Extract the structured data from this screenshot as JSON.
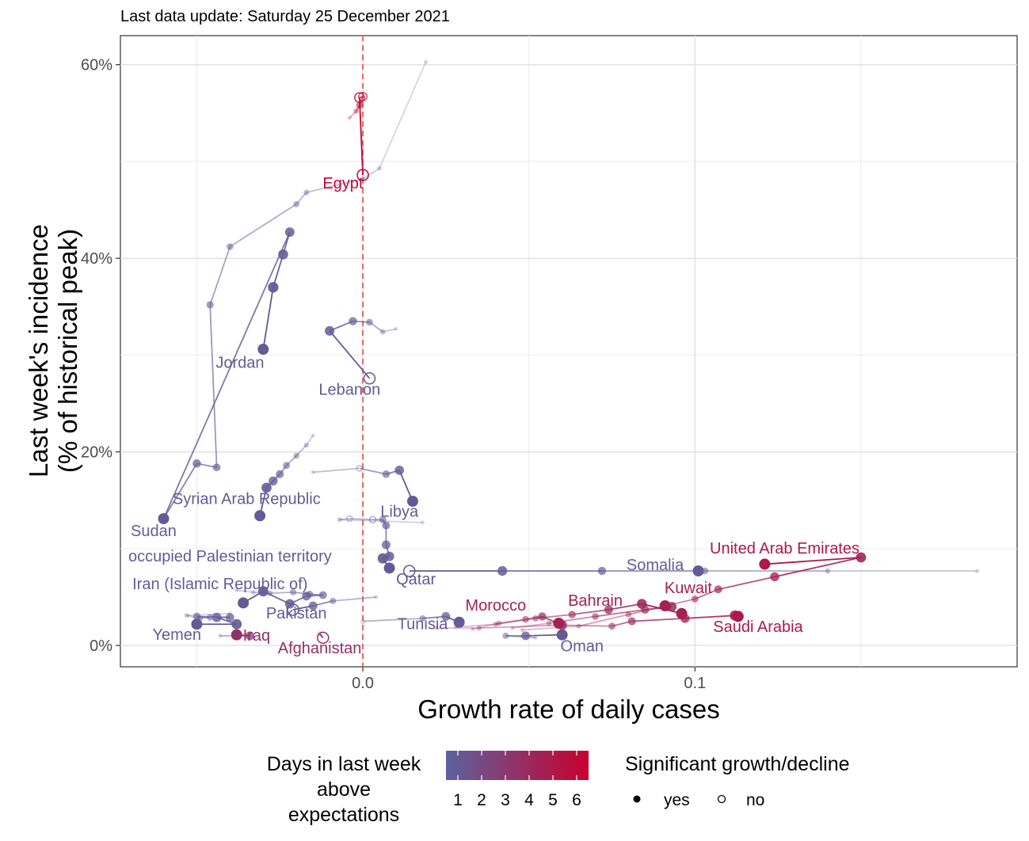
{
  "update_text": "Last data update: Saturday 25 December 2021",
  "chart_data": {
    "type": "scatter",
    "xlabel": "Growth rate of daily cases",
    "ylabel_lines": [
      "Last week's incidence",
      "(% of historical peak)"
    ],
    "xlim": [
      -0.073,
      0.197
    ],
    "ylim": [
      -0.022,
      0.63
    ],
    "x_ticks": [
      {
        "value": 0.0,
        "label": "0.0"
      },
      {
        "value": 0.1,
        "label": "0.1"
      }
    ],
    "y_ticks": [
      {
        "value": 0.0,
        "label": "0%"
      },
      {
        "value": 0.2,
        "label": "20%"
      },
      {
        "value": 0.4,
        "label": "40%"
      },
      {
        "value": 0.6,
        "label": "60%"
      }
    ],
    "x_minor": [
      -0.05,
      0.05,
      0.15
    ],
    "y_minor": [
      0.1,
      0.3,
      0.5
    ],
    "reference_line_x": 0.0,
    "grid": true,
    "colors": {
      "low": "#5b62a0",
      "high": "#c8002d",
      "line": "#e8685f"
    },
    "countries": [
      {
        "name": "Egypt",
        "label_at": [
          -0.006,
          0.472
        ],
        "points": [
          [
            -0.004,
            0.545,
            5.5,
            1
          ],
          [
            -0.002,
            0.552,
            5.5,
            1
          ],
          [
            -0.001,
            0.558,
            6,
            1
          ],
          [
            0.0,
            0.567,
            6,
            0
          ],
          [
            -0.001,
            0.566,
            6,
            0
          ],
          [
            0.0,
            0.486,
            6,
            0
          ]
        ]
      },
      {
        "name": "Jordan",
        "label_at": [
          -0.037,
          0.287
        ],
        "points": [
          [
            0.019,
            0.603,
            1,
            1
          ],
          [
            0.005,
            0.493,
            1,
            1
          ],
          [
            0.0,
            0.482,
            1,
            1
          ],
          [
            -0.017,
            0.468,
            1,
            1
          ],
          [
            -0.02,
            0.456,
            1,
            1
          ],
          [
            -0.04,
            0.412,
            1,
            1
          ],
          [
            -0.046,
            0.352,
            1,
            1
          ],
          [
            -0.044,
            0.184,
            1,
            1
          ],
          [
            -0.05,
            0.188,
            1,
            1
          ],
          [
            -0.06,
            0.131,
            1,
            1
          ],
          [
            -0.022,
            0.427,
            1,
            1
          ],
          [
            -0.024,
            0.404,
            1,
            1
          ],
          [
            -0.027,
            0.37,
            1,
            1
          ],
          [
            -0.03,
            0.306,
            1,
            1
          ]
        ]
      },
      {
        "name": "Lebanon",
        "label_at": [
          -0.004,
          0.259
        ],
        "points": [
          [
            0.01,
            0.327,
            1,
            1
          ],
          [
            0.006,
            0.324,
            1,
            1
          ],
          [
            0.002,
            0.334,
            1,
            1
          ],
          [
            -0.003,
            0.335,
            1,
            1
          ],
          [
            -0.01,
            0.325,
            1,
            1
          ],
          [
            0.002,
            0.276,
            1,
            0
          ]
        ]
      },
      {
        "name": "Syrian Arab Republic",
        "label_at": [
          -0.035,
          0.146
        ],
        "points": [
          [
            -0.015,
            0.217,
            1,
            1
          ],
          [
            -0.017,
            0.207,
            1,
            1
          ],
          [
            -0.02,
            0.196,
            1,
            1
          ],
          [
            -0.023,
            0.186,
            1,
            1
          ],
          [
            -0.025,
            0.177,
            1,
            1
          ],
          [
            -0.027,
            0.17,
            1,
            1
          ],
          [
            -0.029,
            0.163,
            1,
            1
          ],
          [
            -0.031,
            0.134,
            1,
            1
          ]
        ]
      },
      {
        "name": "Libya",
        "label_at": [
          0.011,
          0.133
        ],
        "points": [
          [
            -0.015,
            0.179,
            1,
            1
          ],
          [
            -0.001,
            0.183,
            1,
            0
          ],
          [
            0.007,
            0.177,
            1,
            1
          ],
          [
            0.011,
            0.181,
            1,
            1
          ],
          [
            0.015,
            0.149,
            1,
            1
          ]
        ]
      },
      {
        "name": "Sudan",
        "label_at": [
          -0.063,
          0.113
        ],
        "points": [
          [
            -0.06,
            0.131,
            1,
            1
          ]
        ]
      },
      {
        "name": "occupied Palestinian territory",
        "label_at": [
          -0.04,
          0.087
        ],
        "points": [
          [
            0.018,
            0.127,
            1,
            1
          ],
          [
            -0.007,
            0.13,
            1,
            1
          ],
          [
            -0.004,
            0.131,
            1,
            0
          ],
          [
            0.003,
            0.13,
            1,
            0
          ],
          [
            0.006,
            0.13,
            1,
            1
          ],
          [
            0.007,
            0.124,
            1,
            1
          ],
          [
            0.007,
            0.104,
            1,
            1
          ],
          [
            0.008,
            0.092,
            1,
            1
          ],
          [
            0.006,
            0.09,
            1,
            1
          ],
          [
            0.008,
            0.08,
            1,
            1
          ]
        ]
      },
      {
        "name": "Qatar",
        "label_at": [
          0.016,
          0.063
        ],
        "points": [
          [
            0.185,
            0.077,
            1,
            1
          ],
          [
            0.14,
            0.077,
            1,
            1
          ],
          [
            0.103,
            0.077,
            1,
            1
          ],
          [
            0.072,
            0.077,
            1,
            1
          ],
          [
            0.042,
            0.077,
            1,
            1
          ],
          [
            0.014,
            0.077,
            1,
            0
          ]
        ]
      },
      {
        "name": "Somalia",
        "label_at": [
          0.088,
          0.078
        ],
        "points": [
          [
            0.101,
            0.077,
            1,
            1
          ]
        ]
      },
      {
        "name": "United Arab Emirates",
        "label_at": [
          0.127,
          0.095
        ],
        "points": [
          [
            0.048,
            0.016,
            4.5,
            1
          ],
          [
            0.065,
            0.02,
            4.5,
            1
          ],
          [
            0.08,
            0.032,
            4.5,
            1
          ],
          [
            0.1,
            0.048,
            4.5,
            1
          ],
          [
            0.107,
            0.058,
            4.5,
            1
          ],
          [
            0.124,
            0.071,
            4.5,
            1
          ],
          [
            0.15,
            0.091,
            4.5,
            1
          ],
          [
            0.121,
            0.084,
            5,
            1
          ]
        ]
      },
      {
        "name": "Kuwait",
        "label_at": [
          0.098,
          0.054
        ],
        "points": [
          [
            0.045,
            0.018,
            4,
            1
          ],
          [
            0.056,
            0.023,
            4,
            1
          ],
          [
            0.07,
            0.03,
            4,
            1
          ],
          [
            0.085,
            0.037,
            4,
            1
          ],
          [
            0.093,
            0.04,
            4,
            1
          ],
          [
            0.091,
            0.041,
            4.5,
            1
          ]
        ]
      },
      {
        "name": "Bahrain",
        "label_at": [
          0.07,
          0.041
        ],
        "points": [
          [
            0.028,
            0.019,
            4,
            1
          ],
          [
            0.04,
            0.022,
            4,
            1
          ],
          [
            0.052,
            0.028,
            4,
            1
          ],
          [
            0.063,
            0.032,
            4,
            1
          ],
          [
            0.074,
            0.037,
            4,
            1
          ],
          [
            0.084,
            0.043,
            4,
            1
          ],
          [
            0.096,
            0.033,
            4.5,
            1
          ]
        ]
      },
      {
        "name": "Morocco",
        "label_at": [
          0.04,
          0.036
        ],
        "points": [
          [
            0.033,
            0.017,
            4,
            1
          ],
          [
            0.041,
            0.023,
            4,
            1
          ],
          [
            0.049,
            0.027,
            4,
            1
          ],
          [
            0.054,
            0.03,
            4,
            1
          ],
          [
            0.06,
            0.021,
            4,
            1
          ],
          [
            0.059,
            0.023,
            4.5,
            1
          ]
        ]
      },
      {
        "name": "Saudi Arabia",
        "label_at": [
          0.119,
          0.014
        ],
        "points": [
          [
            0.022,
            0.018,
            4,
            1
          ],
          [
            0.035,
            0.018,
            4,
            1
          ],
          [
            0.059,
            0.021,
            4,
            1
          ],
          [
            0.075,
            0.02,
            4,
            1
          ],
          [
            0.081,
            0.025,
            4,
            1
          ],
          [
            0.097,
            0.028,
            4.5,
            1
          ],
          [
            0.112,
            0.031,
            5,
            1
          ],
          [
            0.113,
            0.03,
            5,
            1
          ]
        ]
      },
      {
        "name": "Tunisia",
        "label_at": [
          0.018,
          0.017
        ],
        "points": [
          [
            0.0,
            0.025,
            1,
            0
          ],
          [
            0.018,
            0.028,
            1,
            1
          ],
          [
            0.025,
            0.03,
            1,
            1
          ],
          [
            0.029,
            0.024,
            1,
            1
          ]
        ]
      },
      {
        "name": "Oman",
        "label_at": [
          0.066,
          -0.006
        ],
        "points": [
          [
            0.052,
            0.008,
            1,
            1
          ],
          [
            0.043,
            0.01,
            1,
            1
          ],
          [
            0.049,
            0.01,
            1,
            1
          ],
          [
            0.06,
            0.011,
            1,
            1
          ]
        ]
      },
      {
        "name": "Iran (Islamic Republic of)",
        "label_at": [
          -0.043,
          0.058
        ],
        "points": [
          [
            -0.038,
            0.057,
            1,
            1
          ],
          [
            -0.033,
            0.055,
            1,
            1
          ],
          [
            -0.028,
            0.054,
            1,
            1
          ],
          [
            -0.021,
            0.055,
            1,
            1
          ],
          [
            -0.016,
            0.053,
            1,
            1
          ],
          [
            -0.012,
            0.052,
            1,
            1
          ],
          [
            -0.017,
            0.051,
            1,
            1
          ],
          [
            -0.022,
            0.043,
            1,
            1
          ],
          [
            -0.03,
            0.056,
            1,
            1
          ],
          [
            -0.036,
            0.044,
            1,
            1
          ]
        ]
      },
      {
        "name": "Pakistan",
        "label_at": [
          -0.02,
          0.028
        ],
        "points": [
          [
            0.004,
            0.05,
            1,
            1
          ],
          [
            -0.009,
            0.046,
            1,
            1
          ],
          [
            -0.015,
            0.041,
            1,
            1
          ],
          [
            -0.021,
            0.037,
            1,
            0
          ]
        ]
      },
      {
        "name": "Yemen",
        "label_at": [
          -0.056,
          0.006
        ],
        "points": [
          [
            -0.04,
            0.033,
            1,
            1
          ],
          [
            -0.053,
            0.031,
            1,
            1
          ],
          [
            -0.049,
            0.028,
            1,
            1
          ],
          [
            -0.046,
            0.029,
            1,
            1
          ],
          [
            -0.05,
            0.03,
            1,
            1
          ],
          [
            -0.04,
            0.029,
            1,
            1
          ],
          [
            -0.044,
            0.029,
            1,
            1
          ],
          [
            -0.038,
            0.022,
            1,
            1
          ],
          [
            -0.05,
            0.022,
            1,
            1
          ]
        ]
      },
      {
        "name": "Iraq",
        "label_at": [
          -0.032,
          0.005
        ],
        "points": [
          [
            -0.043,
            0.01,
            3,
            1
          ],
          [
            -0.038,
            0.01,
            3,
            1
          ],
          [
            -0.034,
            0.01,
            3,
            1
          ],
          [
            -0.038,
            0.011,
            3.5,
            1
          ]
        ]
      },
      {
        "name": "Afghanistan",
        "label_at": [
          -0.013,
          -0.008
        ],
        "points": [
          [
            -0.013,
            0.012,
            3.5,
            0
          ],
          [
            -0.012,
            0.008,
            3.5,
            0
          ]
        ]
      }
    ]
  },
  "legend": {
    "color_title_lines": [
      "Days in last week",
      "above",
      "expectations"
    ],
    "color_ticks": [
      "1",
      "2",
      "3",
      "4",
      "5",
      "6"
    ],
    "shape_title": "Significant growth/decline",
    "shape_items": [
      "yes",
      "no"
    ]
  }
}
